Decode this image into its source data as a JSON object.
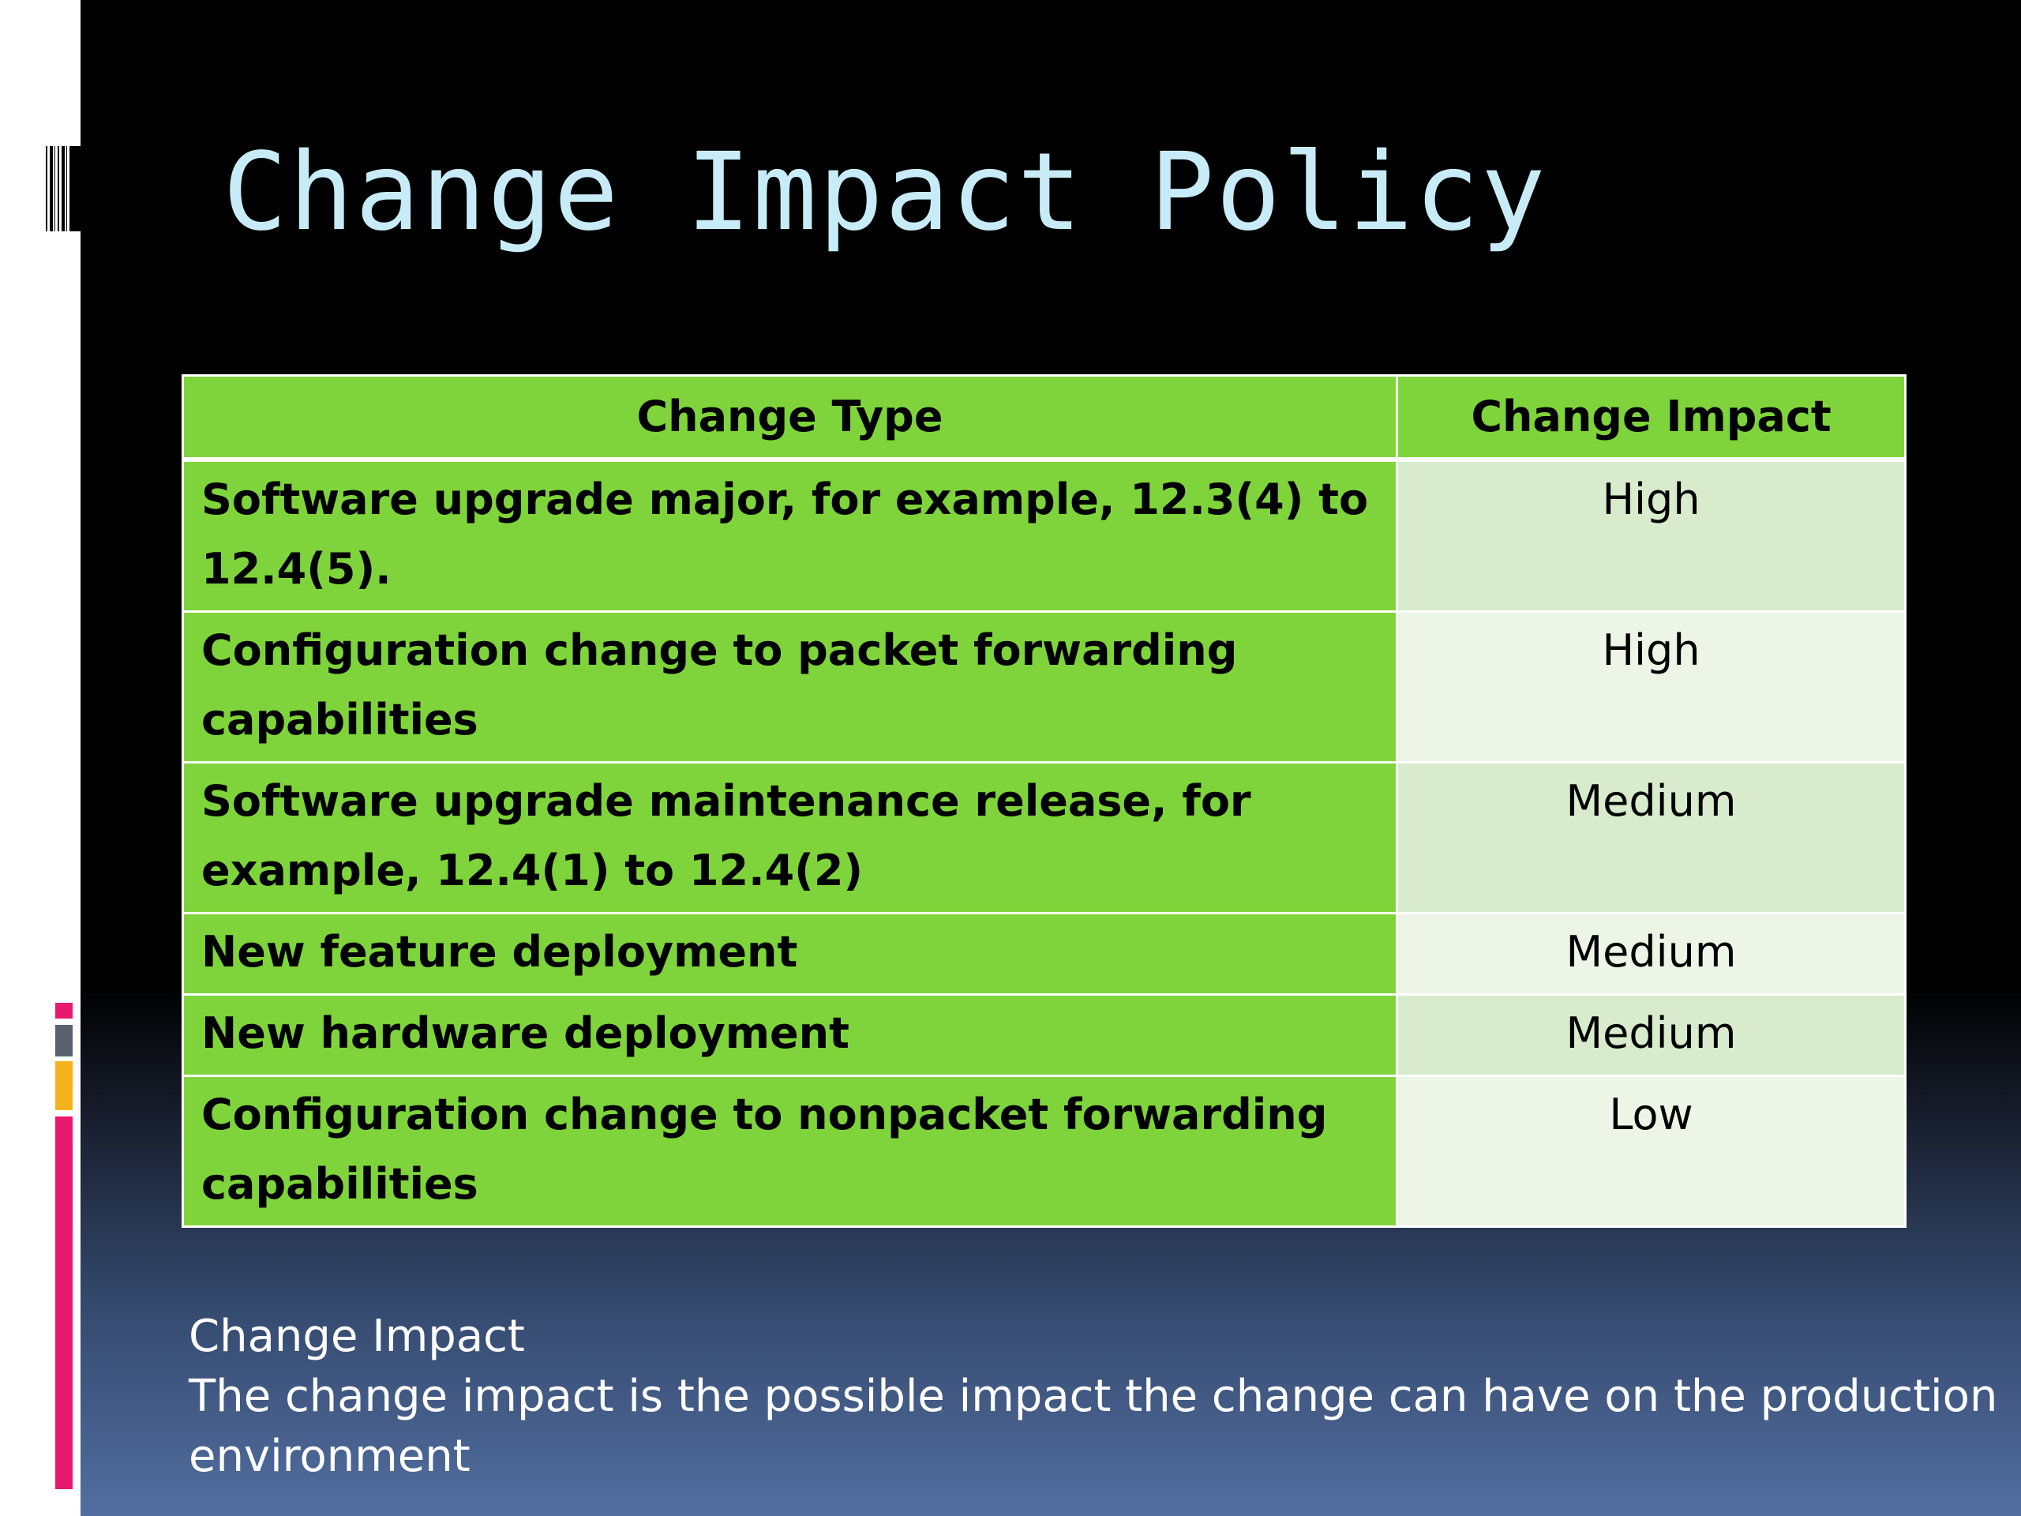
{
  "slide": {
    "title": "Change Impact Policy",
    "table": {
      "headers": [
        "Change Type",
        "Change Impact"
      ],
      "rows": [
        {
          "type": "Software upgrade major, for example, 12.3(4) to 12.4(5).",
          "impact": "High"
        },
        {
          "type": "Configuration change to packet forwarding capabilities",
          "impact": "High"
        },
        {
          "type": "Software upgrade maintenance release, for example, 12.4(1) to 12.4(2)",
          "impact": "Medium"
        },
        {
          "type": "New feature deployment",
          "impact": "Medium"
        },
        {
          "type": "New hardware deployment",
          "impact": "Medium"
        },
        {
          "type": "Configuration change to nonpacket forwarding capabilities",
          "impact": "Low"
        }
      ]
    },
    "footer": {
      "heading": "Change Impact",
      "text": "The change impact is the possible impact the change can have on the production environment"
    }
  },
  "colors": {
    "title": "#c8ecf7",
    "table_green": "#7fd43b",
    "impact_light_a": "#d8ebcc",
    "impact_light_b": "#edf5e6",
    "accent_pink": "#e8196f",
    "accent_yellow": "#f6b21a",
    "accent_gray": "#5a6270"
  }
}
